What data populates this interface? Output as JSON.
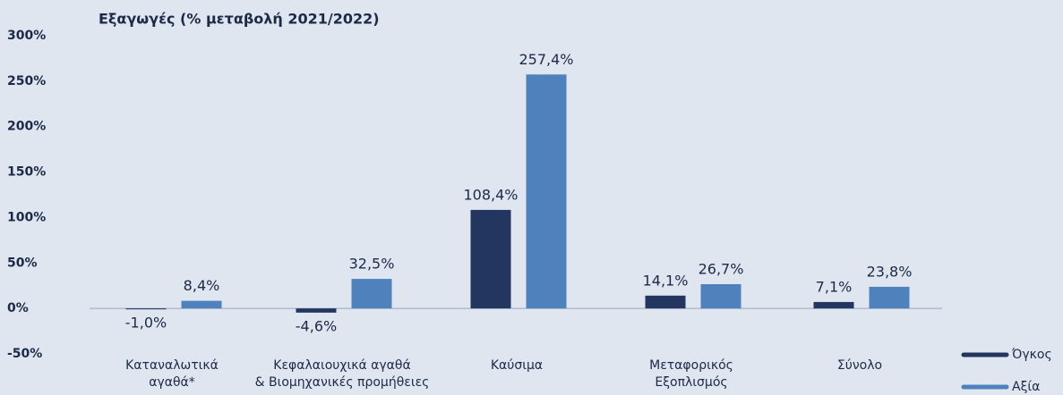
{
  "chart_data": {
    "type": "bar",
    "title": "Εξαγωγές (% μεταβολή 2021/2022)",
    "categories": [
      [
        "Καταναλωτικά",
        "αγαθά*"
      ],
      [
        "Κεφαλαιουχικά αγαθά",
        "& Βιομηχανικές προμήθειες"
      ],
      [
        "Καύσιμα"
      ],
      [
        "Μεταφορικός",
        "Εξοπλισμός"
      ],
      [
        "Σύνολο"
      ]
    ],
    "series": [
      {
        "name": "Όγκος",
        "color": "#22365f",
        "values": [
          -1.0,
          -4.6,
          108.4,
          14.1,
          7.1
        ],
        "value_labels": [
          "-1,0%",
          "-4,6%",
          "108,4%",
          "14,1%",
          "7,1%"
        ]
      },
      {
        "name": "Αξία",
        "color": "#4f81bd",
        "values": [
          8.4,
          32.5,
          257.4,
          26.7,
          23.8
        ],
        "value_labels": [
          "8,4%",
          "32,5%",
          "257,4%",
          "26,7%",
          "23,8%"
        ]
      }
    ],
    "ylim": [
      -50,
      300
    ],
    "yticks": [
      {
        "value": -50,
        "label": "-50%"
      },
      {
        "value": 0,
        "label": "0%"
      },
      {
        "value": 50,
        "label": "50%"
      },
      {
        "value": 100,
        "label": "100%"
      },
      {
        "value": 150,
        "label": "150%"
      },
      {
        "value": 200,
        "label": "200%"
      },
      {
        "value": 250,
        "label": "250%"
      },
      {
        "value": 300,
        "label": "300%"
      }
    ],
    "legend": "bottom-right"
  }
}
